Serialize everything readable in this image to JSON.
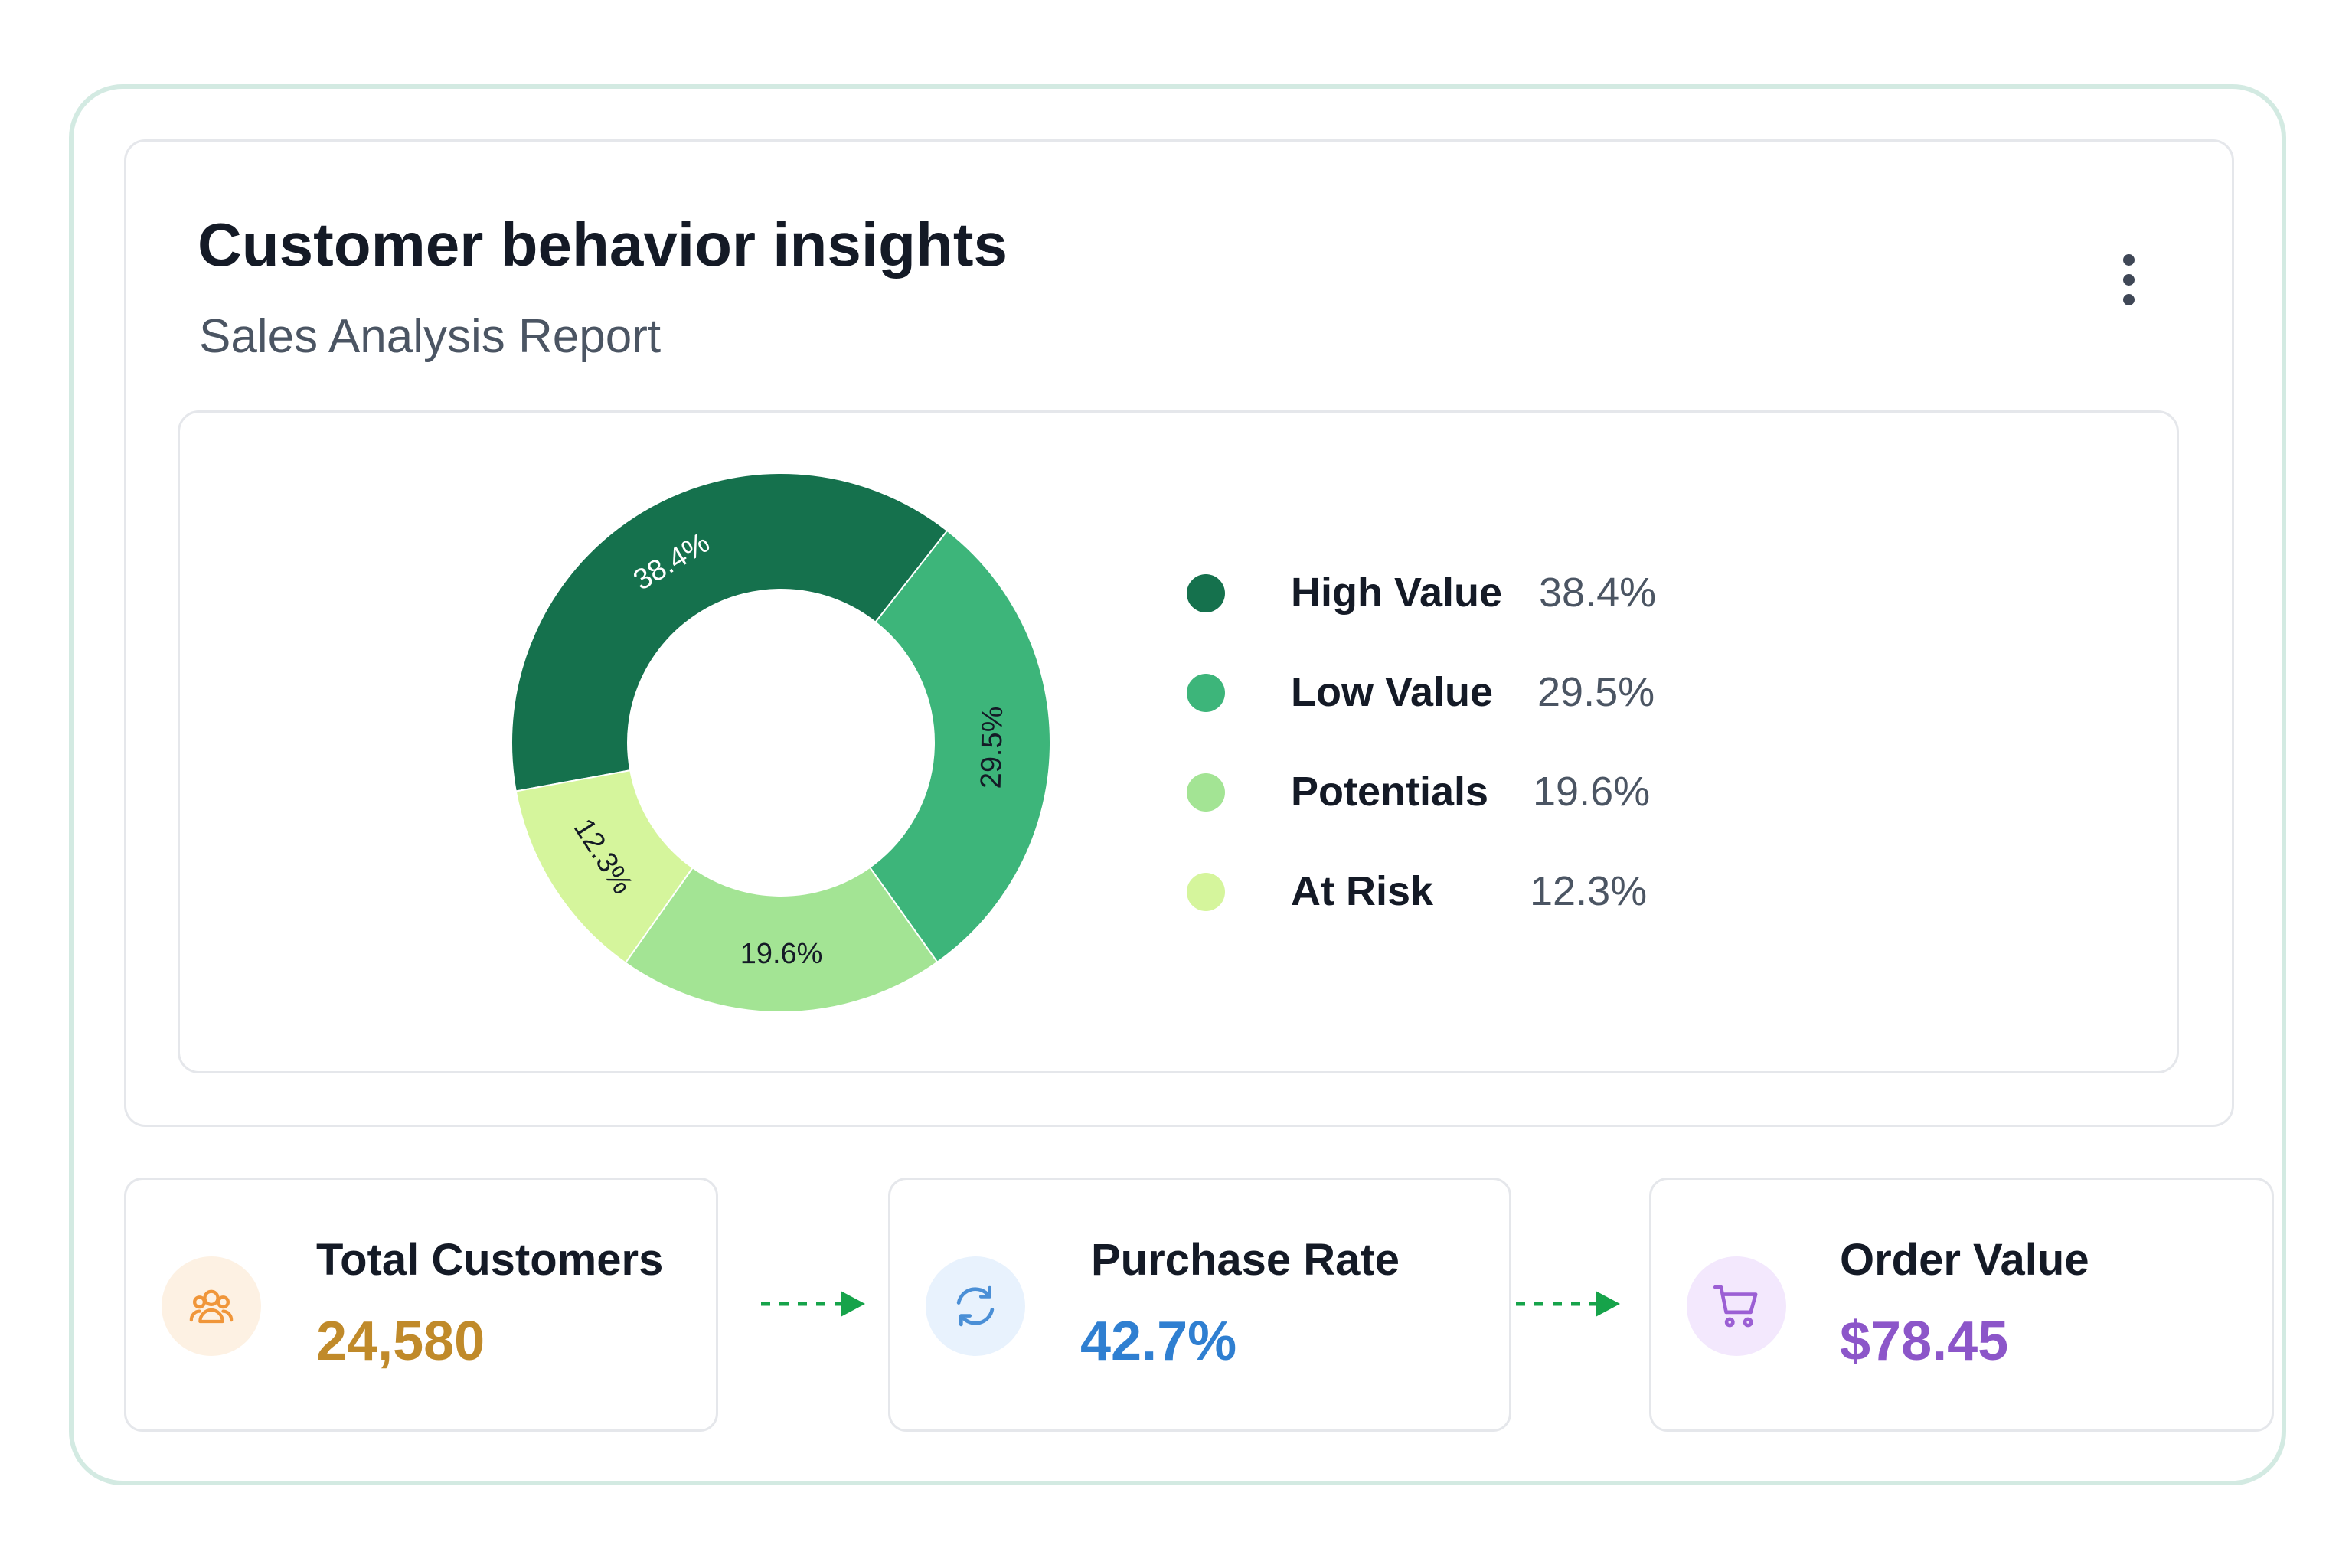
{
  "card": {
    "title": "Customer behavior insights",
    "subtitle": "Sales Analysis Report",
    "menu_icon": "more-vertical-icon"
  },
  "chart_data": {
    "type": "pie",
    "variant": "donut",
    "categories": [
      "High Value",
      "Low Value",
      "Potentials",
      "At Risk"
    ],
    "values": [
      38.4,
      29.5,
      19.6,
      12.3
    ],
    "labels": [
      "38.4%",
      "29.5%",
      "19.6%",
      "12.3%"
    ],
    "colors": [
      "#15714d",
      "#3db57a",
      "#a3e494",
      "#d5f59c"
    ],
    "data_label_colors": [
      "#ffffff",
      "#141a26",
      "#141a26",
      "#141a26"
    ],
    "legend_position": "right",
    "start_angle_deg": -100.4
  },
  "metrics": [
    {
      "label": "Total Customers",
      "value": "24,580",
      "icon": "users-icon",
      "color": "#c08a2a",
      "icon_bg": "#fdf1e3",
      "icon_color": "#f0963a"
    },
    {
      "label": "Purchase Rate",
      "value": "42.7%",
      "icon": "refresh-icon",
      "color": "#2f7fd1",
      "icon_bg": "#e8f2fd",
      "icon_color": "#4a8fd6"
    },
    {
      "label": "Order Value",
      "value": "$78.45",
      "icon": "shopping-cart-icon",
      "color": "#8c56c9",
      "icon_bg": "#f3e8fd",
      "icon_color": "#9b5fd4"
    }
  ],
  "flow_arrow_color": "#16a34a",
  "frame_color": "#d3eae2"
}
